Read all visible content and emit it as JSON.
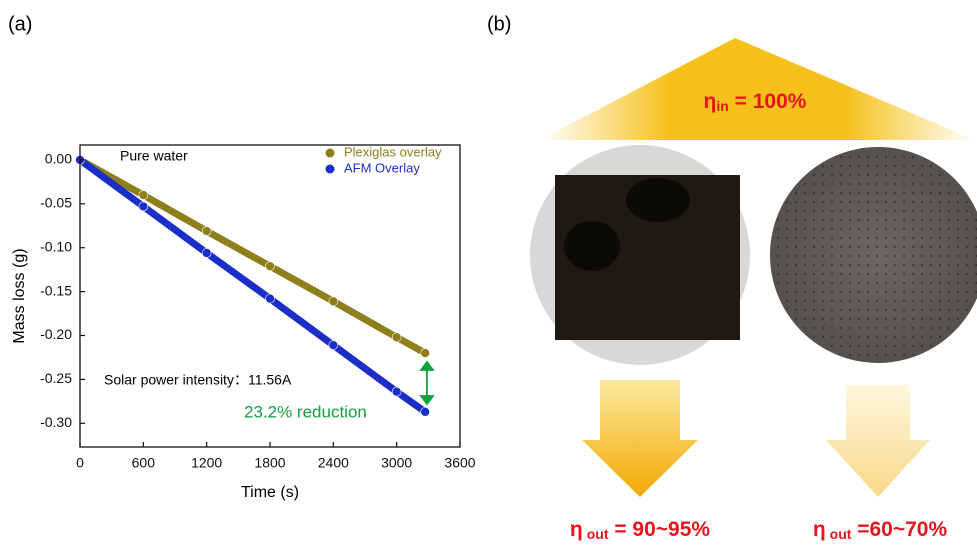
{
  "chart_data": {
    "type": "line",
    "panel_label": "(a)",
    "x_label": "Time (s)",
    "y_label": "Mass loss (g)",
    "x": [
      0,
      600,
      1200,
      1800,
      2400,
      3000,
      3270
    ],
    "series": [
      {
        "name": "Plexiglas overlay",
        "color": "#8d7f1c",
        "values": [
          0,
          -0.04,
          -0.081,
          -0.121,
          -0.161,
          -0.202,
          -0.22
        ]
      },
      {
        "name": "AFM Overlay",
        "color": "#1b2ec8",
        "values": [
          0,
          -0.053,
          -0.106,
          -0.158,
          -0.211,
          -0.264,
          -0.287
        ]
      }
    ],
    "xlim": [
      0,
      3600
    ],
    "xticks": [
      0,
      600,
      1200,
      1800,
      2400,
      3000,
      3600
    ],
    "ylim": [
      -0.327,
      0.017
    ],
    "yticks": [
      {
        "value": 0,
        "label": "0.00"
      },
      {
        "value": -0.05,
        "label": "-0.05"
      },
      {
        "value": -0.1,
        "label": "-0.10"
      },
      {
        "value": -0.15,
        "label": "-0.15"
      },
      {
        "value": -0.2,
        "label": "-0.20"
      },
      {
        "value": -0.25,
        "label": "-0.25"
      },
      {
        "value": -0.3,
        "label": "-0.30"
      }
    ],
    "legend": "upper right",
    "annotations": [
      "Pure water",
      "Solar power intensity：11.56A",
      "23.2% reduction"
    ]
  },
  "diagram": {
    "panel_label": "(b)",
    "input": {
      "symbol": "η",
      "subscript": "in",
      "suffix": " = 100%"
    },
    "outputs": [
      {
        "symbol": "η",
        "subscript": "out",
        "suffix": " = 90~95%"
      },
      {
        "symbol": "η",
        "subscript": "out",
        "suffix": " =60~70%"
      }
    ]
  }
}
